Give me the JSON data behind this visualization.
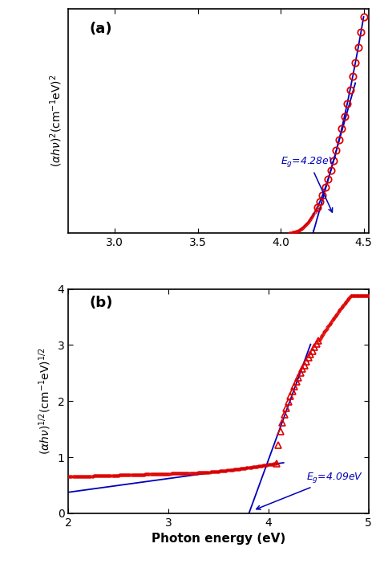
{
  "title_a": "(a)",
  "title_b": "(b)",
  "ylabel_a": "$(\\alpha h\\nu)^2$(cm$^{-1}$eV)$^2$",
  "ylabel_b": "$(\\alpha h\\nu)^{1/2}$(cm$^{-1}$eV)$^{1/2}$",
  "xlabel": "Photon energy (eV)",
  "bg_color": "#ffffff",
  "data_color": "#dd0000",
  "line_color": "#0000bb",
  "annotation_color": "#0000bb",
  "Eg_a": 4.28,
  "Eg_b": 4.09,
  "xlim_a": [
    2.72,
    4.53
  ],
  "xlim_b": [
    2.0,
    5.0
  ],
  "xticks_a": [
    3.0,
    3.5,
    4.0,
    4.5
  ],
  "xticks_b": [
    2,
    3,
    4,
    5
  ],
  "ylim_b": [
    0,
    4
  ],
  "ann_a_text": "$E_g$=4.28eV",
  "ann_b_text": "$E_g$=4.09eV"
}
